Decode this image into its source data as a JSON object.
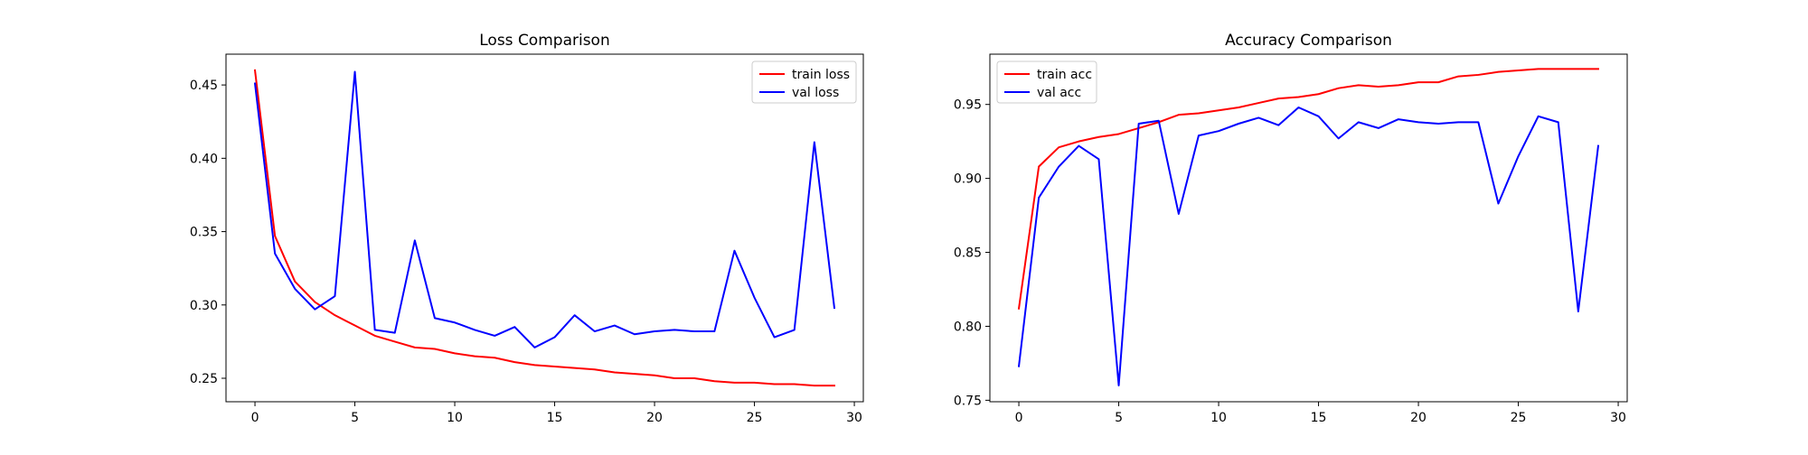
{
  "chart_data": [
    {
      "type": "line",
      "title": "Loss Comparison",
      "xlabel": "",
      "ylabel": "",
      "xlim": [
        -1.45,
        30.45
      ],
      "ylim": [
        0.234,
        0.471
      ],
      "xticks": [
        0,
        5,
        10,
        15,
        20,
        25,
        30
      ],
      "yticks": [
        0.25,
        0.3,
        0.35,
        0.4,
        0.45
      ],
      "ytick_labels": [
        "0.25",
        "0.30",
        "0.35",
        "0.40",
        "0.45"
      ],
      "grid": false,
      "legend_position": "upper right",
      "x": [
        0,
        1,
        2,
        3,
        4,
        5,
        6,
        7,
        8,
        9,
        10,
        11,
        12,
        13,
        14,
        15,
        16,
        17,
        18,
        19,
        20,
        21,
        22,
        23,
        24,
        25,
        26,
        27,
        28,
        29
      ],
      "series": [
        {
          "name": "train loss",
          "color": "#ff0000",
          "values": [
            0.46,
            0.347,
            0.316,
            0.302,
            0.293,
            0.286,
            0.279,
            0.275,
            0.271,
            0.27,
            0.267,
            0.265,
            0.264,
            0.261,
            0.259,
            0.258,
            0.257,
            0.256,
            0.254,
            0.253,
            0.252,
            0.25,
            0.25,
            0.248,
            0.247,
            0.247,
            0.246,
            0.246,
            0.245,
            0.245
          ]
        },
        {
          "name": "val loss",
          "color": "#0000ff",
          "values": [
            0.451,
            0.335,
            0.311,
            0.297,
            0.306,
            0.459,
            0.283,
            0.281,
            0.344,
            0.291,
            0.288,
            0.283,
            0.279,
            0.285,
            0.271,
            0.278,
            0.293,
            0.282,
            0.286,
            0.28,
            0.282,
            0.283,
            0.282,
            0.282,
            0.337,
            0.305,
            0.278,
            0.283,
            0.411,
            0.298
          ]
        }
      ]
    },
    {
      "type": "line",
      "title": "Accuracy Comparison",
      "xlabel": "",
      "ylabel": "",
      "xlim": [
        -1.45,
        30.45
      ],
      "ylim": [
        0.749,
        0.984
      ],
      "xticks": [
        0,
        5,
        10,
        15,
        20,
        25,
        30
      ],
      "yticks": [
        0.75,
        0.8,
        0.85,
        0.9,
        0.95
      ],
      "ytick_labels": [
        "0.75",
        "0.80",
        "0.85",
        "0.90",
        "0.95"
      ],
      "grid": false,
      "legend_position": "upper left",
      "x": [
        0,
        1,
        2,
        3,
        4,
        5,
        6,
        7,
        8,
        9,
        10,
        11,
        12,
        13,
        14,
        15,
        16,
        17,
        18,
        19,
        20,
        21,
        22,
        23,
        24,
        25,
        26,
        27,
        28,
        29
      ],
      "series": [
        {
          "name": "train acc",
          "color": "#ff0000",
          "values": [
            0.812,
            0.908,
            0.921,
            0.925,
            0.928,
            0.93,
            0.934,
            0.938,
            0.943,
            0.944,
            0.946,
            0.948,
            0.951,
            0.954,
            0.955,
            0.957,
            0.961,
            0.963,
            0.962,
            0.963,
            0.965,
            0.965,
            0.969,
            0.97,
            0.972,
            0.973,
            0.974,
            0.974,
            0.974,
            0.974
          ]
        },
        {
          "name": "val acc",
          "color": "#0000ff",
          "values": [
            0.773,
            0.887,
            0.908,
            0.922,
            0.913,
            0.76,
            0.937,
            0.939,
            0.876,
            0.929,
            0.932,
            0.937,
            0.941,
            0.936,
            0.948,
            0.942,
            0.927,
            0.938,
            0.934,
            0.94,
            0.938,
            0.937,
            0.938,
            0.938,
            0.883,
            0.915,
            0.942,
            0.938,
            0.81,
            0.922
          ]
        }
      ]
    }
  ]
}
